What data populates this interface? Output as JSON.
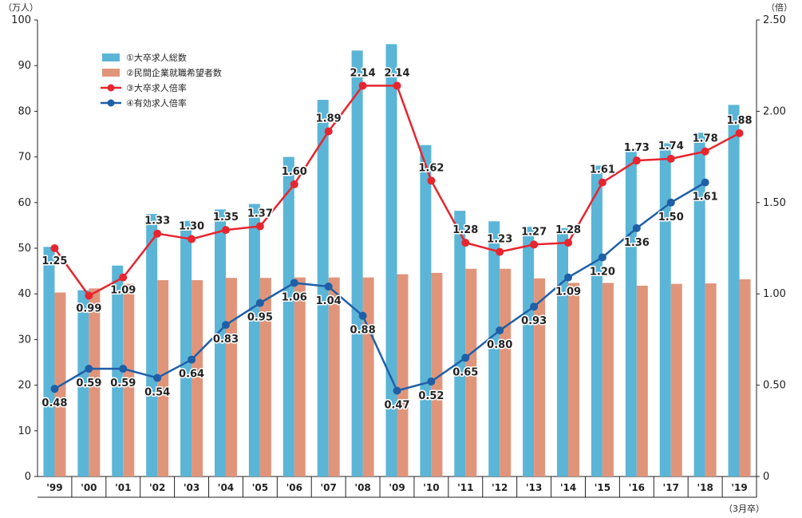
{
  "chart_data": {
    "type": "bar",
    "categories": [
      "'99",
      "'00",
      "'01",
      "'02",
      "'03",
      "'04",
      "'05",
      "'06",
      "'07",
      "'08",
      "'09",
      "'10",
      "'11",
      "'12",
      "'13",
      "'14",
      "'15",
      "'16",
      "'17",
      "'18",
      "'19"
    ],
    "left_axis": {
      "unit": "（万人）",
      "min": 0,
      "max": 100,
      "ticks": [
        "0",
        "10",
        "20",
        "30",
        "40",
        "50",
        "60",
        "70",
        "80",
        "90",
        "100"
      ]
    },
    "right_axis": {
      "unit": "（倍）",
      "min": 0,
      "max": 2.5,
      "ticks": [
        "0",
        "0.50",
        "1.00",
        "1.50",
        "2.00",
        "2.50"
      ]
    },
    "x_note": "（3月卒）",
    "series": [
      {
        "name": "①大卒求人総数",
        "type": "bar",
        "axis": "left",
        "color": "#5bb5d6",
        "values": [
          50.3,
          40.8,
          46.2,
          57.5,
          56.0,
          58.5,
          59.7,
          70.0,
          82.5,
          93.3,
          94.7,
          72.6,
          58.2,
          55.9,
          54.7,
          54.4,
          68.1,
          71.8,
          73.0,
          75.3,
          81.4
        ]
      },
      {
        "name": "②民間企業就職希望者数",
        "type": "bar",
        "axis": "left",
        "color": "#e0957b",
        "values": [
          40.3,
          41.2,
          42.2,
          43.0,
          43.0,
          43.5,
          43.5,
          43.6,
          43.6,
          43.6,
          44.3,
          44.6,
          45.5,
          45.5,
          43.4,
          42.4,
          42.4,
          41.8,
          42.2,
          42.3,
          43.2
        ]
      },
      {
        "name": "③大卒求人倍率",
        "type": "line",
        "axis": "right",
        "color": "#e8252f",
        "values": [
          1.25,
          0.99,
          1.09,
          1.33,
          1.3,
          1.35,
          1.37,
          1.6,
          1.89,
          2.14,
          2.14,
          1.62,
          1.28,
          1.23,
          1.27,
          1.28,
          1.61,
          1.73,
          1.74,
          1.78,
          1.88
        ],
        "labels": [
          "1.25",
          "0.99",
          "1.09",
          "1.33",
          "1.30",
          "1.35",
          "1.37",
          "1.60",
          "1.89",
          "2.14",
          "2.14",
          "1.62",
          "1.28",
          "1.23",
          "1.27",
          "1.28",
          "1.61",
          "1.73",
          "1.74",
          "1.78",
          "1.88"
        ]
      },
      {
        "name": "④有効求人倍率",
        "type": "line",
        "axis": "right",
        "color": "#1f5fa8",
        "values": [
          0.48,
          0.59,
          0.59,
          0.54,
          0.64,
          0.83,
          0.95,
          1.06,
          1.04,
          0.88,
          0.47,
          0.52,
          0.65,
          0.8,
          0.93,
          1.09,
          1.2,
          1.36,
          1.5,
          1.61,
          null
        ],
        "labels": [
          "0.48",
          "0.59",
          "0.59",
          "0.54",
          "0.64",
          "0.83",
          "0.95",
          "1.06",
          "1.04",
          "0.88",
          "0.47",
          "0.52",
          "0.65",
          "0.80",
          "0.93",
          "1.09",
          "1.20",
          "1.36",
          "1.50",
          "1.61",
          ""
        ]
      }
    ],
    "legend_position": "top-left",
    "grid": false
  }
}
